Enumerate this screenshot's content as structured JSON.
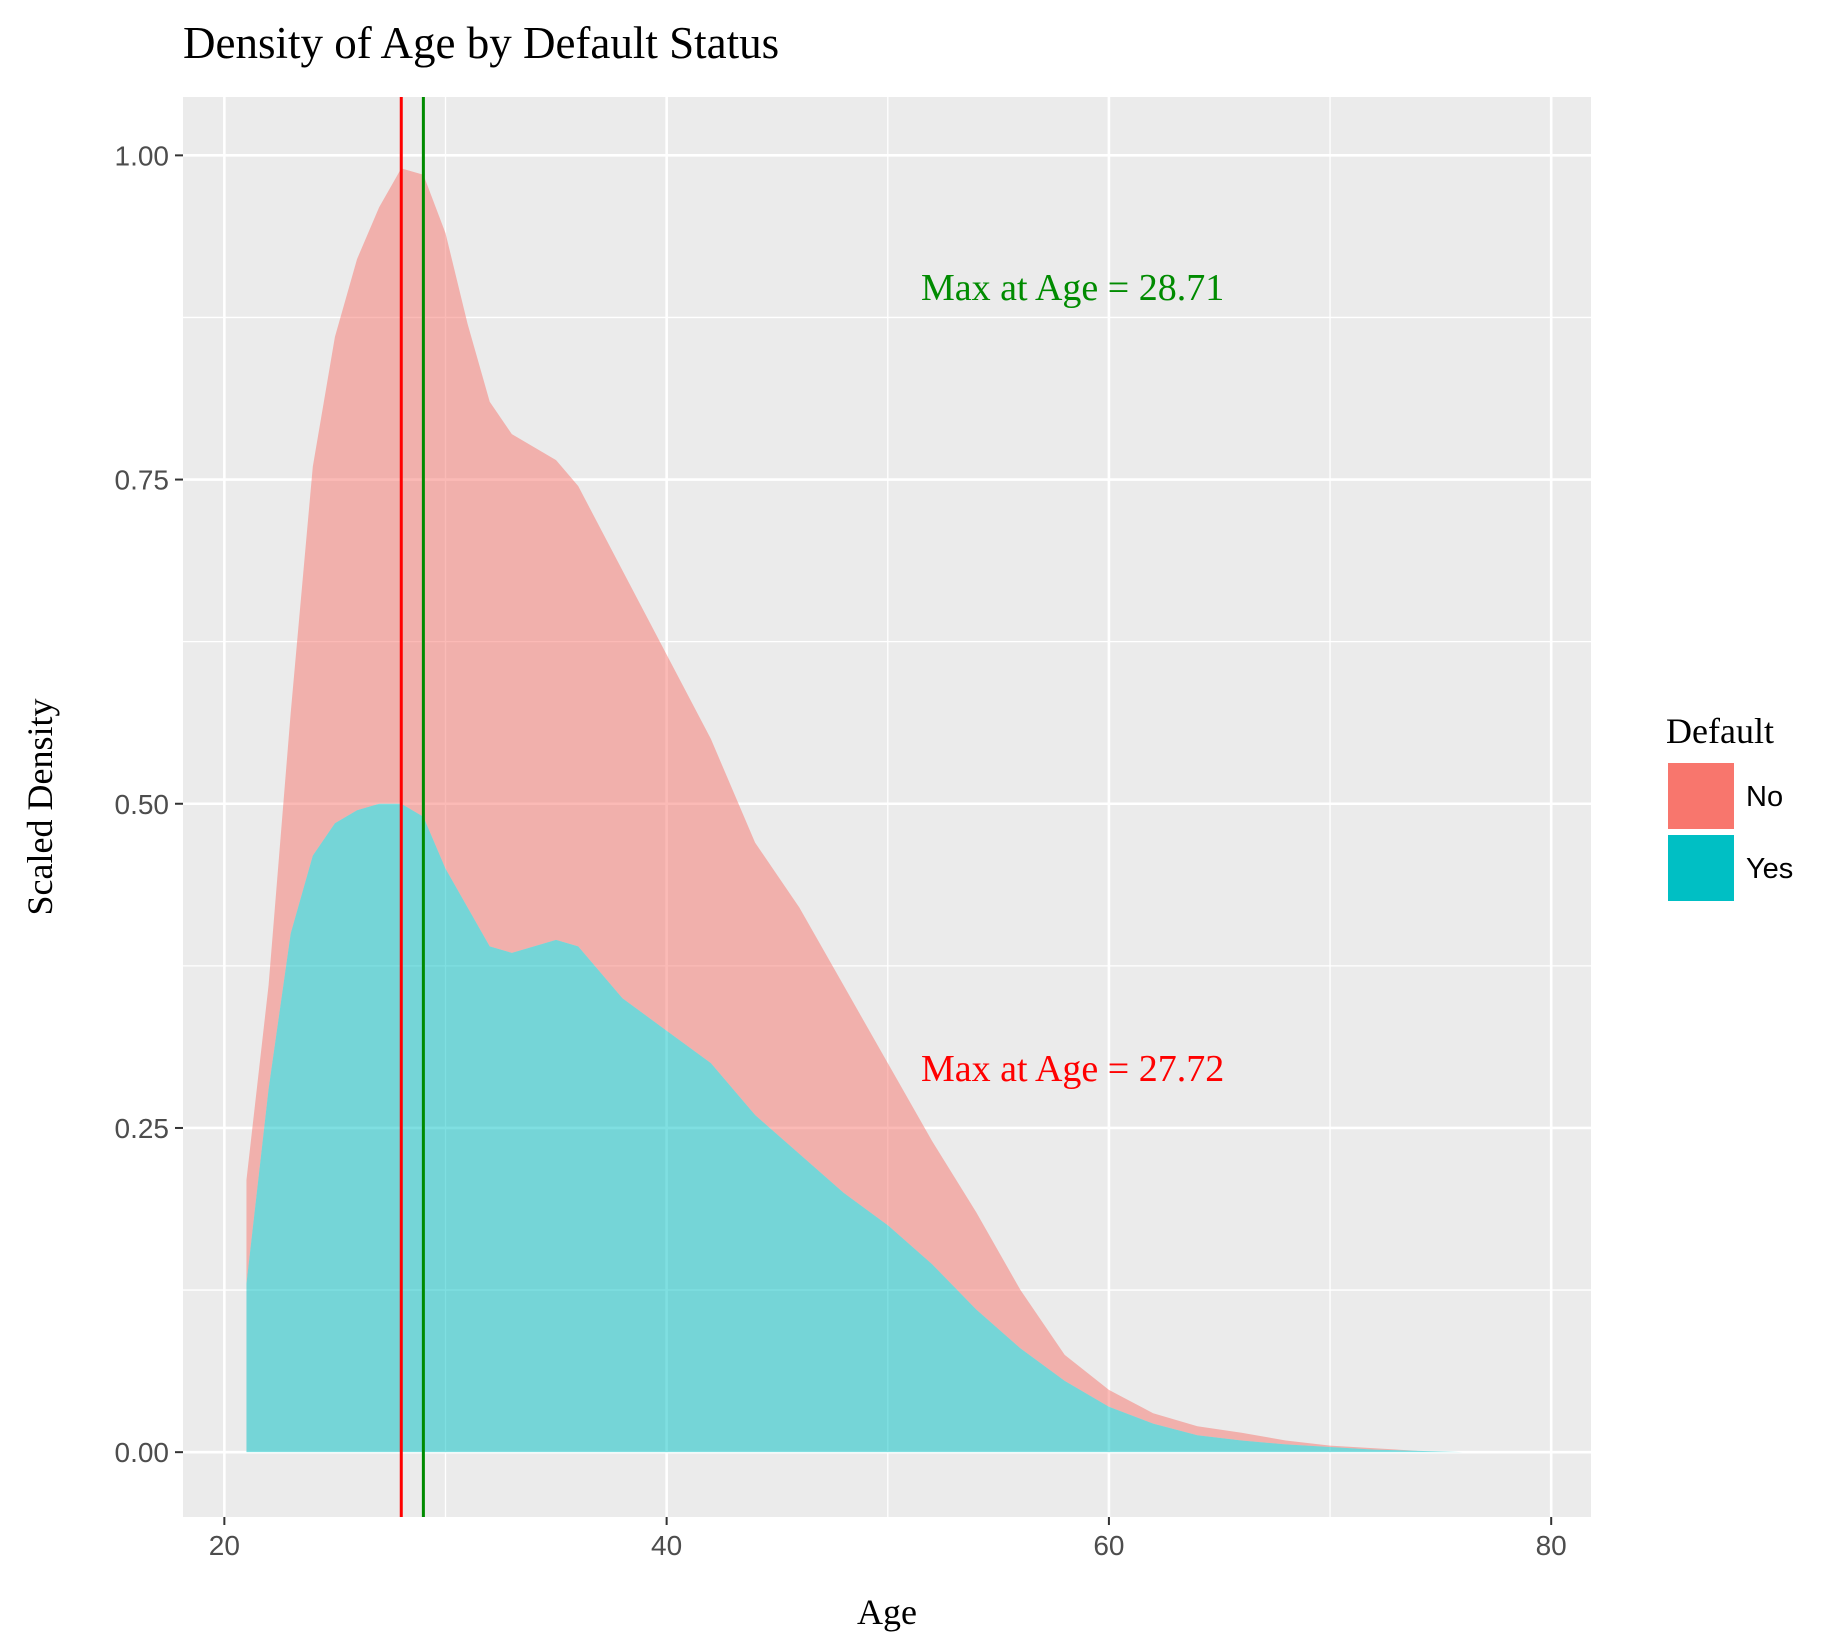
{
  "chart_data": {
    "type": "stacked-area",
    "title": "Density of Age by Default Status",
    "x_label": "Age",
    "y_label": "Scaled Density",
    "legend_title": "Default",
    "x": [
      21,
      22,
      23,
      24,
      25,
      26,
      27,
      28,
      29,
      30,
      31,
      32,
      33,
      34,
      35,
      36,
      38,
      40,
      42,
      44,
      46,
      48,
      50,
      52,
      54,
      56,
      58,
      60,
      62,
      64,
      66,
      68,
      70,
      72,
      74,
      76
    ],
    "series": [
      {
        "name": "No",
        "color": "#F8766D",
        "values": [
          0.08,
          0.08,
          0.17,
          0.3,
          0.375,
          0.425,
          0.46,
          0.49,
          0.495,
          0.49,
          0.45,
          0.42,
          0.4,
          0.385,
          0.37,
          0.355,
          0.33,
          0.29,
          0.25,
          0.21,
          0.19,
          0.16,
          0.125,
          0.095,
          0.075,
          0.045,
          0.02,
          0.013,
          0.008,
          0.007,
          0.006,
          0.003,
          0.001,
          0.001,
          0,
          0
        ]
      },
      {
        "name": "Yes",
        "color": "#00BFC4",
        "values": [
          0.13,
          0.28,
          0.4,
          0.46,
          0.485,
          0.495,
          0.5,
          0.5,
          0.49,
          0.45,
          0.42,
          0.39,
          0.385,
          0.39,
          0.395,
          0.39,
          0.35,
          0.325,
          0.3,
          0.26,
          0.23,
          0.2,
          0.175,
          0.145,
          0.11,
          0.08,
          0.055,
          0.035,
          0.022,
          0.013,
          0.009,
          0.006,
          0.004,
          0.002,
          0.001,
          0
        ]
      }
    ],
    "vlines": [
      {
        "x": 28.0,
        "color": "#FF0000"
      },
      {
        "x": 29.0,
        "color": "#008B00"
      }
    ],
    "annotations": [
      {
        "text": "Max at Age = 28.71",
        "color": "#008B00"
      },
      {
        "text": "Max at Age = 27.72",
        "color": "#FF0000"
      }
    ],
    "xlim": [
      18.13,
      81.8
    ],
    "ylim": [
      -0.05,
      1.045
    ],
    "xticks": [
      20,
      40,
      60,
      80
    ],
    "yticks": [
      {
        "value": 0,
        "label": "0.00"
      },
      {
        "value": 0.25,
        "label": "0.25"
      },
      {
        "value": 0.5,
        "label": "0.50"
      },
      {
        "value": 0.75,
        "label": "0.75"
      },
      {
        "value": 1,
        "label": "1.00"
      }
    ],
    "grid": true
  }
}
